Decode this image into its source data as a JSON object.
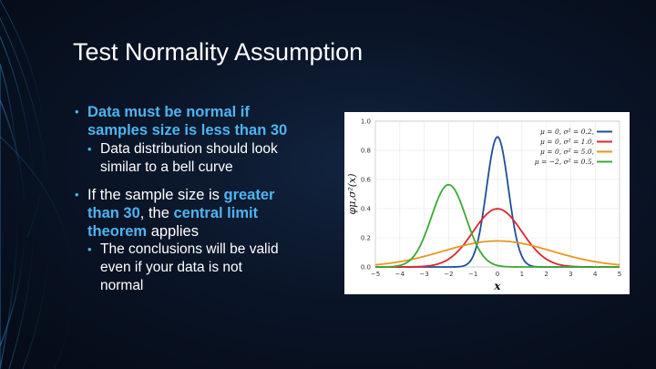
{
  "slide": {
    "title": "Test Normality Assumption",
    "bullets": [
      {
        "level": 1,
        "parts": [
          {
            "text": "Data must be normal if",
            "style": "hl"
          },
          {
            "br": true
          },
          {
            "text": "samples size is less than 30",
            "style": "hl"
          }
        ]
      },
      {
        "level": 2,
        "parts": [
          {
            "text": "Data distribution should look"
          },
          {
            "br": true
          },
          {
            "text": "similar to a bell curve"
          }
        ]
      },
      {
        "level": 1,
        "parts": [
          {
            "text": "If the sample size is "
          },
          {
            "text": "greater",
            "style": "hl"
          },
          {
            "br": true
          },
          {
            "text": "than 30",
            "style": "hl"
          },
          {
            "text": ", the "
          },
          {
            "text": "central limit",
            "style": "hl"
          },
          {
            "br": true
          },
          {
            "text": "theorem",
            "style": "hl"
          },
          {
            "text": " applies"
          }
        ]
      },
      {
        "level": 2,
        "parts": [
          {
            "text": "The conclusions will be valid"
          },
          {
            "br": true
          },
          {
            "text": "even if your data is not"
          },
          {
            "br": true
          },
          {
            "text": "normal"
          }
        ]
      }
    ],
    "bullet_glyph": "•",
    "colors": {
      "accent": "#4fb4f2",
      "text": "#ffffff"
    }
  },
  "chart_data": {
    "type": "line",
    "xlabel": "x",
    "ylabel": "φμ,σ²(x)",
    "xlim": [
      -5,
      5
    ],
    "ylim": [
      0,
      1.0
    ],
    "xticks": [
      -5,
      -4,
      -3,
      -2,
      -1,
      0,
      1,
      2,
      3,
      4,
      5
    ],
    "yticks": [
      0.0,
      0.2,
      0.4,
      0.6,
      0.8,
      1.0
    ],
    "ytick_labels": [
      "0.0",
      "0.2",
      "0.4",
      "0.6",
      "0.8",
      "1.0"
    ],
    "grid": true,
    "legend_position": "top-right",
    "series": [
      {
        "name": "μ = 0,   σ² = 0.2,",
        "mu": 0,
        "var": 0.2,
        "color": "#1f4e9c"
      },
      {
        "name": "μ = 0,   σ² = 1.0,",
        "mu": 0,
        "var": 1.0,
        "color": "#e0262b"
      },
      {
        "name": "μ = 0,   σ² = 5.0,",
        "mu": 0,
        "var": 5.0,
        "color": "#e8971e"
      },
      {
        "name": "μ = −2,  σ² = 0.5,",
        "mu": -2,
        "var": 0.5,
        "color": "#3aa935"
      }
    ]
  }
}
